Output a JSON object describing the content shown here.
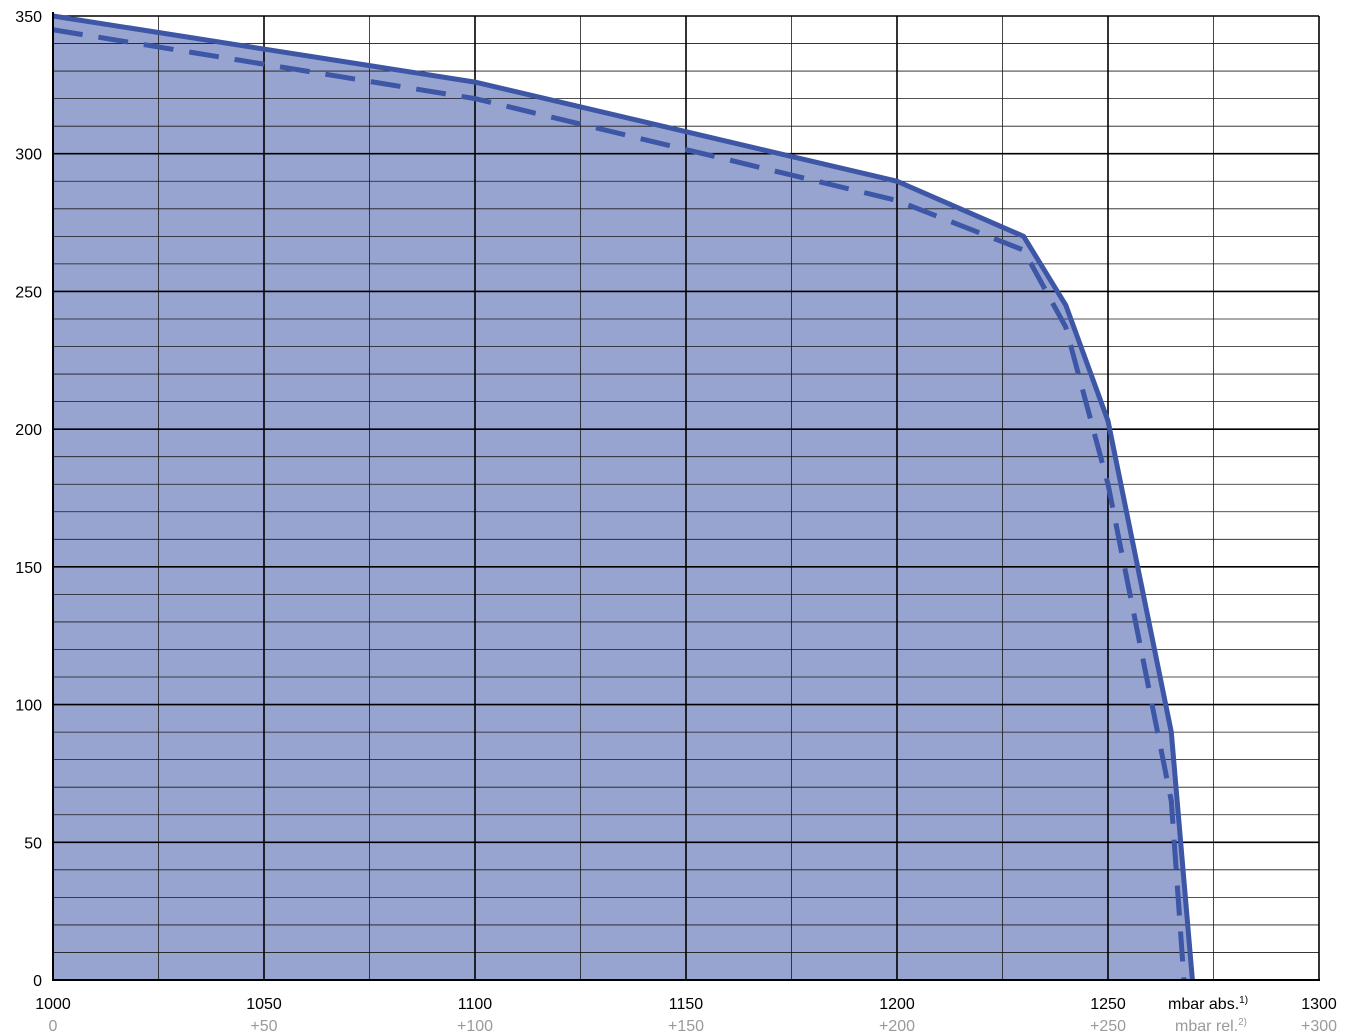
{
  "chart_data": {
    "type": "area",
    "title": "",
    "xlim": [
      1000,
      1300
    ],
    "ylim": [
      0,
      350
    ],
    "grid": true,
    "x_ticks": [
      {
        "abs": "1000",
        "rel": "0"
      },
      {
        "abs": "1050",
        "rel": "+50"
      },
      {
        "abs": "1100",
        "rel": "+100"
      },
      {
        "abs": "1150",
        "rel": "+150"
      },
      {
        "abs": "1200",
        "rel": "+200"
      },
      {
        "abs": "1250",
        "rel": "+250"
      },
      {
        "abs": "1300",
        "rel": "+300"
      }
    ],
    "y_ticks": [
      "0",
      "50",
      "100",
      "150",
      "200",
      "250",
      "300",
      "350"
    ],
    "x_unit_abs": "mbar abs.",
    "x_unit_abs_note": "1)",
    "x_unit_rel": "mbar rel.",
    "x_unit_rel_note": "2)",
    "series": [
      {
        "style": "solid",
        "x": [
          1000,
          1100,
          1200,
          1230,
          1240,
          1250,
          1265,
          1270
        ],
        "y": [
          350,
          326,
          290,
          270,
          245,
          203,
          90,
          0
        ]
      },
      {
        "style": "dashed",
        "x": [
          1000,
          1100,
          1200,
          1230,
          1240,
          1250,
          1265,
          1268
        ],
        "y": [
          345,
          320,
          283,
          265,
          237,
          180,
          65,
          0
        ]
      }
    ],
    "colors": {
      "fill": "#97a4cf",
      "line": "#3d56a6",
      "grid_major": "#000000",
      "grid_minor": "#1a1a1a",
      "rel_text": "#9a9a9a"
    }
  }
}
